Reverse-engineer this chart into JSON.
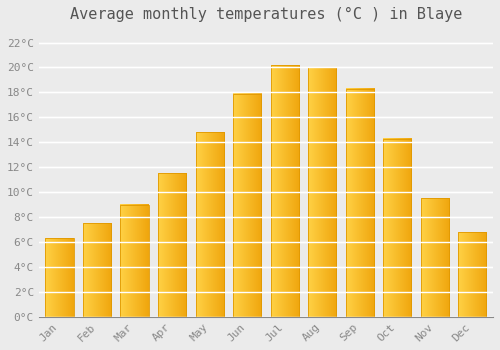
{
  "title": "Average monthly temperatures (°C ) in Blaye",
  "months": [
    "Jan",
    "Feb",
    "Mar",
    "Apr",
    "May",
    "Jun",
    "Jul",
    "Aug",
    "Sep",
    "Oct",
    "Nov",
    "Dec"
  ],
  "values": [
    6.3,
    7.5,
    9.0,
    11.5,
    14.8,
    17.9,
    20.2,
    20.0,
    18.3,
    14.3,
    9.5,
    6.8
  ],
  "bar_color_left": "#FFCC44",
  "bar_color_right": "#F5A800",
  "bar_edge_color": "#E09800",
  "ylim": [
    0,
    23
  ],
  "yticks": [
    0,
    2,
    4,
    6,
    8,
    10,
    12,
    14,
    16,
    18,
    20,
    22
  ],
  "ytick_labels": [
    "0°C",
    "2°C",
    "4°C",
    "6°C",
    "8°C",
    "10°C",
    "12°C",
    "14°C",
    "16°C",
    "18°C",
    "20°C",
    "22°C"
  ],
  "background_color": "#ebebeb",
  "grid_color": "#ffffff",
  "title_fontsize": 11,
  "tick_fontsize": 8,
  "font_family": "monospace"
}
